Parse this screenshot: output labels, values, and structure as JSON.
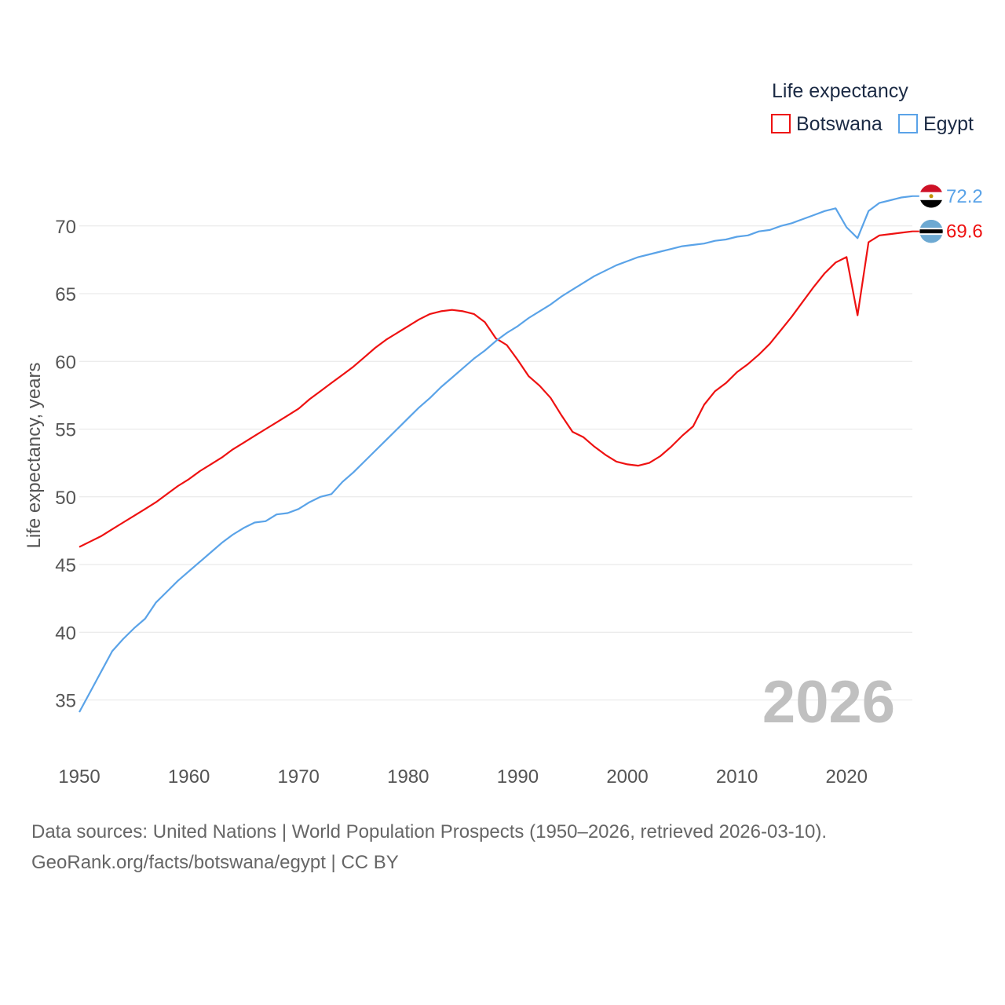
{
  "chart_data": {
    "type": "line",
    "legend_title": "Life expectancy",
    "ylabel": "Life expectancy, years",
    "xlabel": "",
    "xlim": [
      1950,
      2026
    ],
    "ylim": [
      33,
      73
    ],
    "yticks": [
      35,
      40,
      45,
      50,
      55,
      60,
      65,
      70
    ],
    "xticks": [
      1950,
      1960,
      1970,
      1980,
      1990,
      2000,
      2010,
      2020
    ],
    "year_label": "2026",
    "grid": true,
    "x": [
      1950,
      1951,
      1952,
      1953,
      1954,
      1955,
      1956,
      1957,
      1958,
      1959,
      1960,
      1961,
      1962,
      1963,
      1964,
      1965,
      1966,
      1967,
      1968,
      1969,
      1970,
      1971,
      1972,
      1973,
      1974,
      1975,
      1976,
      1977,
      1978,
      1979,
      1980,
      1981,
      1982,
      1983,
      1984,
      1985,
      1986,
      1987,
      1988,
      1989,
      1990,
      1991,
      1992,
      1993,
      1994,
      1995,
      1996,
      1997,
      1998,
      1999,
      2000,
      2001,
      2002,
      2003,
      2004,
      2005,
      2006,
      2007,
      2008,
      2009,
      2010,
      2011,
      2012,
      2013,
      2014,
      2015,
      2016,
      2017,
      2018,
      2019,
      2020,
      2021,
      2022,
      2023,
      2024,
      2025,
      2026
    ],
    "series": [
      {
        "name": "Botswana",
        "color": "#ee1111",
        "end_label": "69.6",
        "flag": "botswana-flag-icon",
        "values": [
          46.3,
          46.7,
          47.1,
          47.6,
          48.1,
          48.6,
          49.1,
          49.6,
          50.2,
          50.8,
          51.3,
          51.9,
          52.4,
          52.9,
          53.5,
          54.0,
          54.5,
          55.0,
          55.5,
          56.0,
          56.5,
          57.2,
          57.8,
          58.4,
          59.0,
          59.6,
          60.3,
          61.0,
          61.6,
          62.1,
          62.6,
          63.1,
          63.5,
          63.7,
          63.8,
          63.7,
          63.5,
          62.9,
          61.7,
          61.2,
          60.1,
          58.9,
          58.2,
          57.3,
          56.0,
          54.8,
          54.4,
          53.7,
          53.1,
          52.6,
          52.4,
          52.3,
          52.5,
          53.0,
          53.7,
          54.5,
          55.2,
          56.8,
          57.8,
          58.4,
          59.2,
          59.8,
          60.5,
          61.3,
          62.3,
          63.3,
          64.4,
          65.5,
          66.5,
          67.3,
          67.7,
          63.4,
          68.8,
          69.3,
          69.4,
          69.5,
          69.6
        ]
      },
      {
        "name": "Egypt",
        "color": "#5aa3e8",
        "end_label": "72.2",
        "flag": "egypt-flag-icon",
        "values": [
          34.1,
          35.6,
          37.1,
          38.6,
          39.5,
          40.3,
          41.0,
          42.2,
          43.0,
          43.8,
          44.5,
          45.2,
          45.9,
          46.6,
          47.2,
          47.7,
          48.1,
          48.2,
          48.7,
          48.8,
          49.1,
          49.6,
          50.0,
          50.2,
          51.1,
          51.8,
          52.6,
          53.4,
          54.2,
          55.0,
          55.8,
          56.6,
          57.3,
          58.1,
          58.8,
          59.5,
          60.2,
          60.8,
          61.5,
          62.1,
          62.6,
          63.2,
          63.7,
          64.2,
          64.8,
          65.3,
          65.8,
          66.3,
          66.7,
          67.1,
          67.4,
          67.7,
          67.9,
          68.1,
          68.3,
          68.5,
          68.6,
          68.7,
          68.9,
          69.0,
          69.2,
          69.3,
          69.6,
          69.7,
          70.0,
          70.2,
          70.5,
          70.8,
          71.1,
          71.3,
          69.9,
          69.1,
          71.1,
          71.7,
          71.9,
          72.1,
          72.2
        ]
      }
    ]
  },
  "footer": {
    "sources_line": "Data sources: United Nations | World Population Prospects (1950–2026, retrieved 2026-03-10).",
    "credit_line": "GeoRank.org/facts/botswana/egypt | CC BY"
  }
}
